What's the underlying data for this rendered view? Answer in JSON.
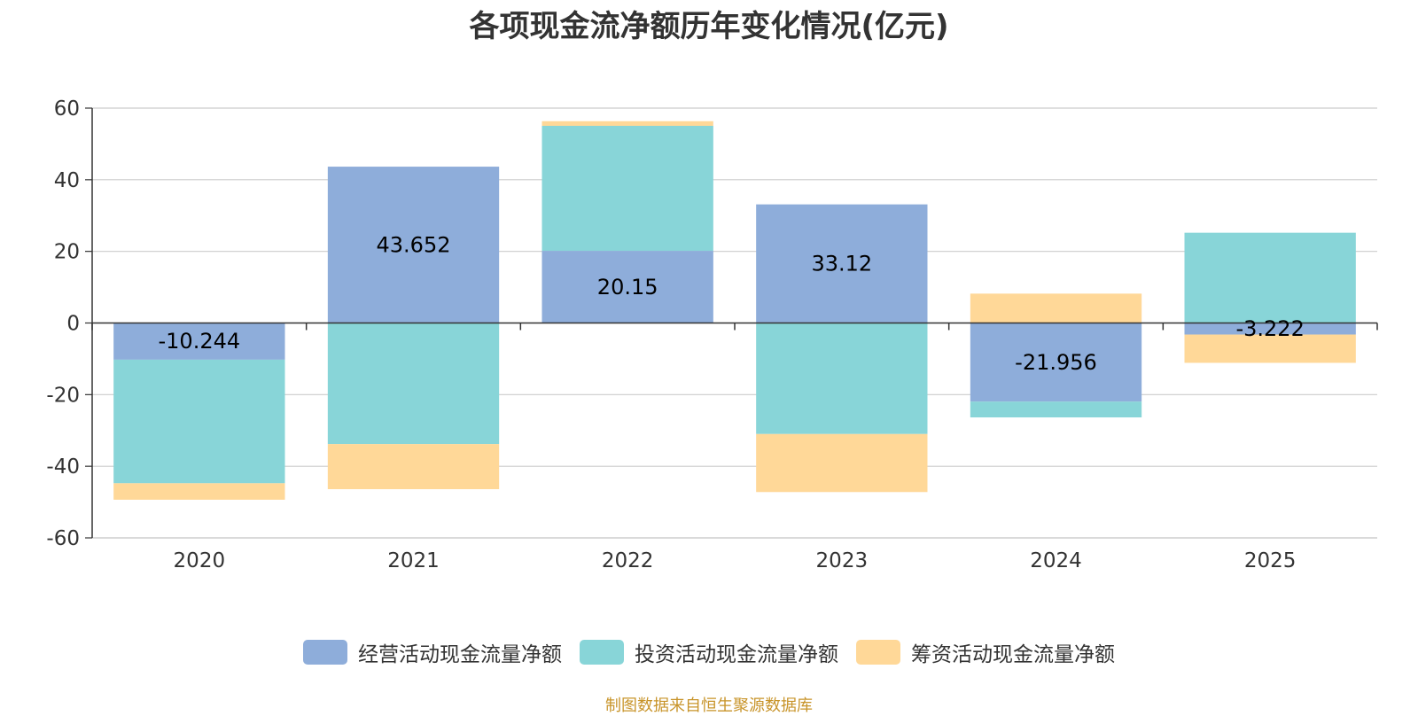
{
  "title": "各项现金流净额历年变化情况(亿元)",
  "source": "制图数据来自恒生聚源数据库",
  "chart_data": {
    "type": "bar",
    "stacked": true,
    "title": "各项现金流净额历年变化情况(亿元)",
    "xlabel": "",
    "ylabel": "",
    "ylim": [
      -60,
      60
    ],
    "yticks": [
      60,
      40,
      20,
      0,
      -20,
      -40,
      -60
    ],
    "grid": true,
    "legend_position": "bottom",
    "categories": [
      "2020",
      "2021",
      "2022",
      "2023",
      "2024",
      "2025"
    ],
    "series": [
      {
        "name": "经营活动现金流量净额",
        "color": "#8eadda",
        "values": [
          -10.244,
          43.652,
          20.15,
          33.12,
          -21.956,
          -3.222
        ],
        "labels": [
          "-10.244",
          "43.652",
          "20.15",
          "33.12",
          "-21.956",
          "-3.222"
        ]
      },
      {
        "name": "投资活动现金流量净额",
        "color": "#88d5d8",
        "values": [
          -34.5,
          -33.8,
          34.9,
          -31.0,
          -4.4,
          25.2
        ]
      },
      {
        "name": "筹资活动现金流量净额",
        "color": "#ffd898",
        "values": [
          -4.6,
          -12.6,
          1.3,
          -16.2,
          8.2,
          -7.9
        ]
      }
    ]
  }
}
